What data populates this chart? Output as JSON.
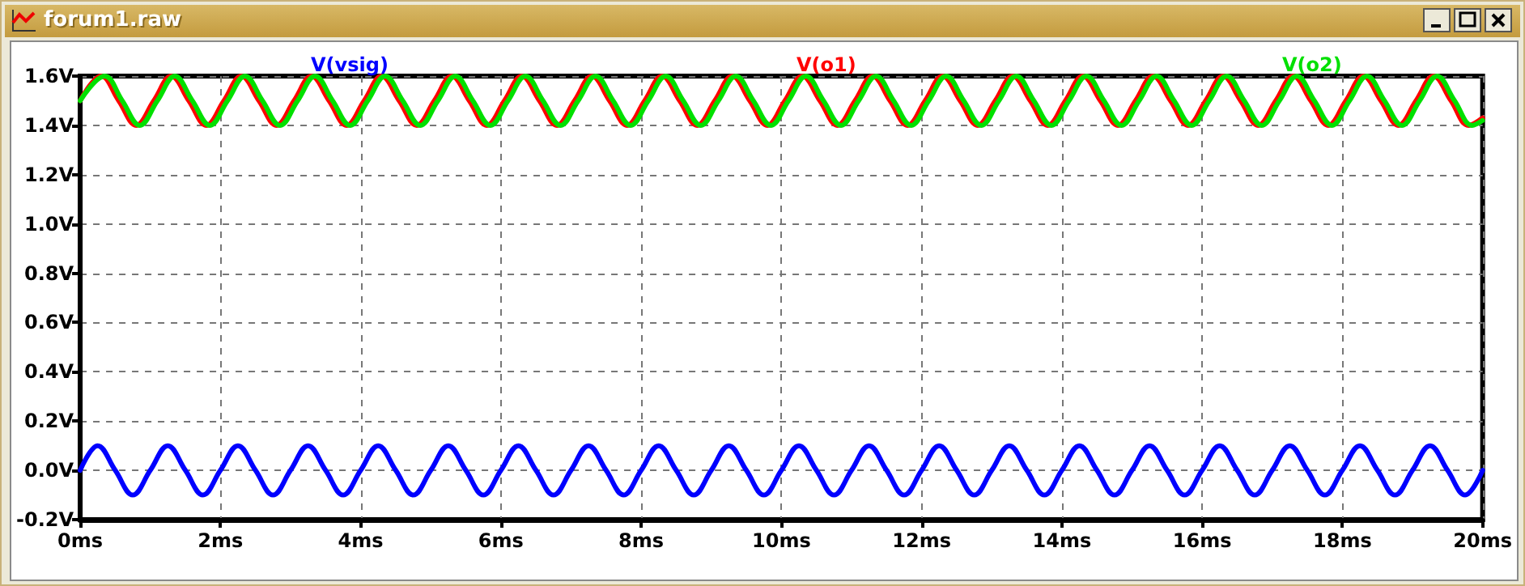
{
  "chart_data": {
    "type": "line",
    "title": "forum1.raw",
    "series": [
      {
        "name": "V(vsig)",
        "color": "#0000ff",
        "x": [
          0,
          0.25,
          0.5,
          0.75,
          1,
          1.25,
          1.5,
          1.75,
          2,
          2.25,
          2.5,
          2.75,
          3,
          3.25,
          3.5,
          3.75,
          4,
          4.25,
          4.5,
          4.75,
          5,
          5.25,
          5.5,
          5.75,
          6,
          6.25,
          6.5,
          6.75,
          7,
          7.25,
          7.5,
          7.75,
          8,
          8.25,
          8.5,
          8.75,
          9,
          9.25,
          9.5,
          9.75,
          10,
          10.25,
          10.5,
          10.75,
          11,
          11.25,
          11.5,
          11.75,
          12,
          12.25,
          12.5,
          12.75,
          13,
          13.25,
          13.5,
          13.75,
          14,
          14.25,
          14.5,
          14.75,
          15,
          15.25,
          15.5,
          15.75,
          16,
          16.25,
          16.5,
          16.75,
          17,
          17.25,
          17.5,
          17.75,
          18,
          18.25,
          18.5,
          18.75,
          19,
          19.25,
          19.5,
          19.75,
          20
        ],
        "values": [
          0,
          0.1,
          0,
          -0.1,
          0,
          0.1,
          0,
          -0.1,
          0,
          0.1,
          0,
          -0.1,
          0,
          0.1,
          0,
          -0.1,
          0,
          0.1,
          0,
          -0.1,
          0,
          0.1,
          0,
          -0.1,
          0,
          0.1,
          0,
          -0.1,
          0,
          0.1,
          0,
          -0.1,
          0,
          0.1,
          0,
          -0.1,
          0,
          0.1,
          0,
          -0.1,
          0,
          0.1,
          0,
          -0.1,
          0,
          0.1,
          0,
          -0.1,
          0,
          0.1,
          0,
          -0.1,
          0,
          0.1,
          0,
          -0.1,
          0,
          0.1,
          0,
          -0.1,
          0,
          0.1,
          0,
          -0.1,
          0,
          0.1,
          0,
          -0.1,
          0,
          0.1,
          0,
          -0.1,
          0,
          0.1,
          0,
          -0.1,
          0,
          0.1,
          0,
          -0.1,
          0
        ]
      },
      {
        "name": "V(o1)",
        "color": "#ff0000",
        "x": [
          0,
          0.3,
          0.55,
          0.8,
          1.05,
          1.3,
          1.55,
          1.8,
          2.05,
          2.3,
          2.55,
          2.8,
          3.05,
          3.3,
          3.55,
          3.8,
          4.05,
          4.3,
          4.55,
          4.8,
          5.05,
          5.3,
          5.55,
          5.8,
          6.05,
          6.3,
          6.55,
          6.8,
          7.05,
          7.3,
          7.55,
          7.8,
          8.05,
          8.3,
          8.55,
          8.8,
          9.05,
          9.3,
          9.55,
          9.8,
          10.05,
          10.3,
          10.55,
          10.8,
          11.05,
          11.3,
          11.55,
          11.8,
          12.05,
          12.3,
          12.55,
          12.8,
          13.05,
          13.3,
          13.55,
          13.8,
          14.05,
          14.3,
          14.55,
          14.8,
          15.05,
          15.3,
          15.55,
          15.8,
          16.05,
          16.3,
          16.55,
          16.8,
          17.05,
          17.3,
          17.55,
          17.8,
          18.05,
          18.3,
          18.55,
          18.8,
          19.05,
          19.3,
          19.55,
          19.8,
          20
        ],
        "values": [
          1.5,
          1.6,
          1.5,
          1.4,
          1.5,
          1.6,
          1.5,
          1.4,
          1.5,
          1.6,
          1.5,
          1.4,
          1.5,
          1.6,
          1.5,
          1.4,
          1.5,
          1.6,
          1.5,
          1.4,
          1.5,
          1.6,
          1.5,
          1.4,
          1.5,
          1.6,
          1.5,
          1.4,
          1.5,
          1.6,
          1.5,
          1.4,
          1.5,
          1.6,
          1.5,
          1.4,
          1.5,
          1.6,
          1.5,
          1.4,
          1.5,
          1.6,
          1.5,
          1.4,
          1.5,
          1.6,
          1.5,
          1.4,
          1.5,
          1.6,
          1.5,
          1.4,
          1.5,
          1.6,
          1.5,
          1.4,
          1.5,
          1.6,
          1.5,
          1.4,
          1.5,
          1.6,
          1.5,
          1.4,
          1.5,
          1.6,
          1.5,
          1.4,
          1.5,
          1.6,
          1.5,
          1.4,
          1.5,
          1.6,
          1.5,
          1.4,
          1.5,
          1.6,
          1.5,
          1.4,
          1.43
        ]
      },
      {
        "name": "V(o2)",
        "color": "#00e000",
        "x": [
          0,
          0.35,
          0.6,
          0.85,
          1.1,
          1.35,
          1.6,
          1.85,
          2.1,
          2.35,
          2.6,
          2.85,
          3.1,
          3.35,
          3.6,
          3.85,
          4.1,
          4.35,
          4.6,
          4.85,
          5.1,
          5.35,
          5.6,
          5.85,
          6.1,
          6.35,
          6.6,
          6.85,
          7.1,
          7.35,
          7.6,
          7.85,
          8.1,
          8.35,
          8.6,
          8.85,
          9.1,
          9.35,
          9.6,
          9.85,
          10.1,
          10.35,
          10.6,
          10.85,
          11.1,
          11.35,
          11.6,
          11.85,
          12.1,
          12.35,
          12.6,
          12.85,
          13.1,
          13.35,
          13.6,
          13.85,
          14.1,
          14.35,
          14.6,
          14.85,
          15.1,
          15.35,
          15.6,
          15.85,
          16.1,
          16.35,
          16.6,
          16.85,
          17.1,
          17.35,
          17.6,
          17.85,
          18.1,
          18.35,
          18.6,
          18.85,
          19.1,
          19.35,
          19.6,
          19.85,
          20
        ],
        "values": [
          1.5,
          1.6,
          1.5,
          1.4,
          1.5,
          1.6,
          1.5,
          1.4,
          1.5,
          1.6,
          1.5,
          1.4,
          1.5,
          1.6,
          1.5,
          1.4,
          1.5,
          1.6,
          1.5,
          1.4,
          1.5,
          1.6,
          1.5,
          1.4,
          1.5,
          1.6,
          1.5,
          1.4,
          1.5,
          1.6,
          1.5,
          1.4,
          1.5,
          1.6,
          1.5,
          1.4,
          1.5,
          1.6,
          1.5,
          1.4,
          1.5,
          1.6,
          1.5,
          1.4,
          1.5,
          1.6,
          1.5,
          1.4,
          1.5,
          1.6,
          1.5,
          1.4,
          1.5,
          1.6,
          1.5,
          1.4,
          1.5,
          1.6,
          1.5,
          1.4,
          1.5,
          1.6,
          1.5,
          1.4,
          1.5,
          1.6,
          1.5,
          1.4,
          1.5,
          1.6,
          1.5,
          1.4,
          1.5,
          1.6,
          1.5,
          1.4,
          1.5,
          1.6,
          1.5,
          1.4,
          1.42
        ]
      }
    ],
    "xlim": [
      0,
      20
    ],
    "xticks": [
      {
        "value": 0,
        "label": "0ms"
      },
      {
        "value": 2,
        "label": "2ms"
      },
      {
        "value": 4,
        "label": "4ms"
      },
      {
        "value": 6,
        "label": "6ms"
      },
      {
        "value": 8,
        "label": "8ms"
      },
      {
        "value": 10,
        "label": "10ms"
      },
      {
        "value": 12,
        "label": "12ms"
      },
      {
        "value": 14,
        "label": "14ms"
      },
      {
        "value": 16,
        "label": "16ms"
      },
      {
        "value": 18,
        "label": "18ms"
      },
      {
        "value": 20,
        "label": "20ms"
      }
    ],
    "ylim": [
      -0.2,
      1.6
    ],
    "yticks": [
      {
        "value": -0.2,
        "label": "-0.2V"
      },
      {
        "value": 0,
        "label": "0.0V"
      },
      {
        "value": 0.2,
        "label": "0.2V"
      },
      {
        "value": 0.4,
        "label": "0.4V"
      },
      {
        "value": 0.6,
        "label": "0.6V"
      },
      {
        "value": 0.8,
        "label": "0.8V"
      },
      {
        "value": 1.0,
        "label": "1.0V"
      },
      {
        "value": 1.2,
        "label": "1.2V"
      },
      {
        "value": 1.4,
        "label": "1.4V"
      },
      {
        "value": 1.6,
        "label": "1.6V"
      }
    ],
    "grid": true,
    "legend": "top",
    "line_style": "solid",
    "marker": "none"
  }
}
